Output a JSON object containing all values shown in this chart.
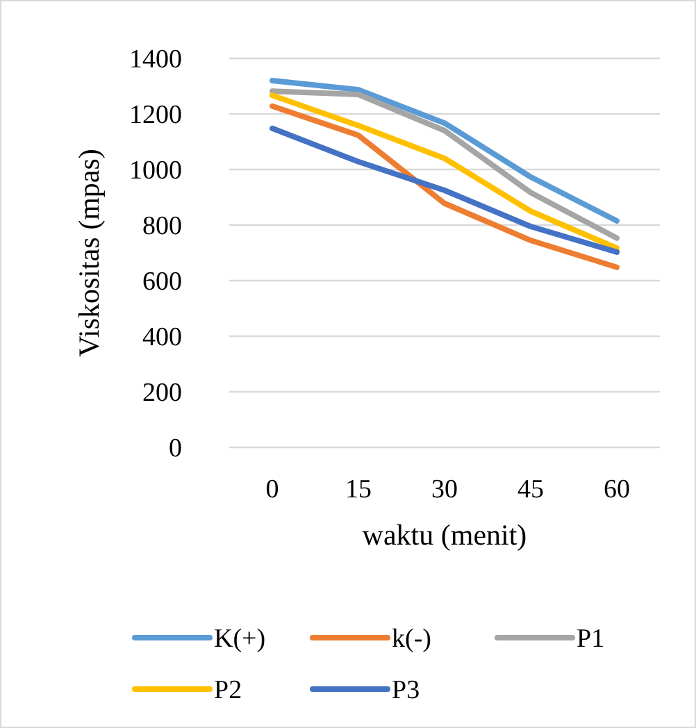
{
  "chart_data": {
    "type": "line",
    "xlabel": "waktu (menit)",
    "ylabel": "Viskositas (mpas)",
    "categories": [
      "0",
      "15",
      "30",
      "45",
      "60"
    ],
    "ylim": [
      0,
      1400
    ],
    "yticks": [
      0,
      200,
      400,
      600,
      800,
      1000,
      1200,
      1400
    ],
    "grid": "y",
    "legend": "bottom",
    "marker": "none",
    "series": [
      {
        "name": "K(+)",
        "color": "#5b9bd5",
        "values": [
          1320,
          1287,
          1167,
          973,
          815
        ]
      },
      {
        "name": "k(-)",
        "color": "#ed7d31",
        "values": [
          1228,
          1123,
          878,
          745,
          648
        ]
      },
      {
        "name": "P1",
        "color": "#a5a5a5",
        "values": [
          1282,
          1270,
          1140,
          917,
          753
        ]
      },
      {
        "name": "P2",
        "color": "#ffc000",
        "values": [
          1267,
          1158,
          1040,
          850,
          717
        ]
      },
      {
        "name": "P3",
        "color": "#4472c4",
        "values": [
          1148,
          1028,
          925,
          795,
          703
        ]
      }
    ]
  }
}
